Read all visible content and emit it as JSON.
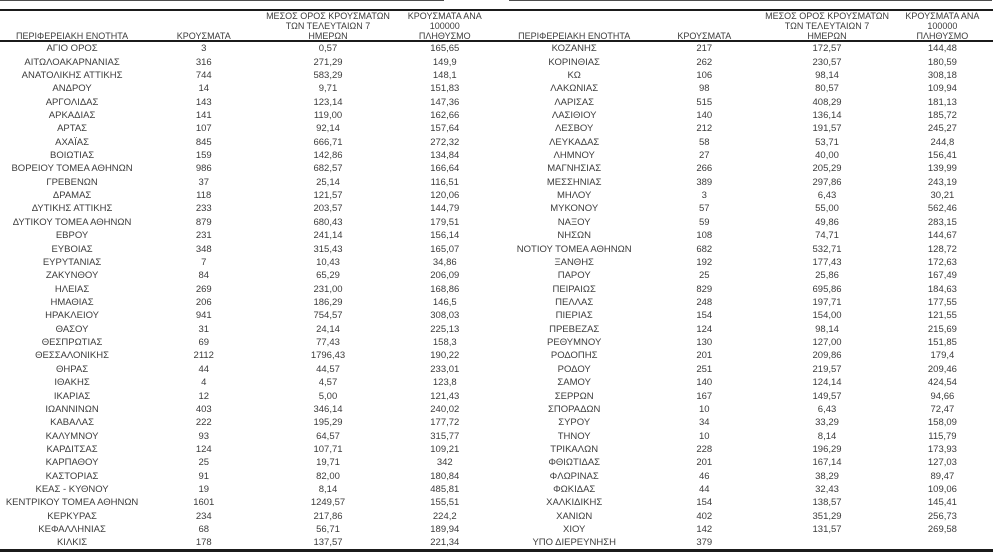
{
  "page": {
    "background": "#ffffff",
    "text_color": "#3c3c3c",
    "line_color": "#1b1b1b"
  },
  "table": {
    "column_headers": {
      "region": "ΠΕΡΙΦΕΡΕΙΑΚΗ ΕΝΟΤΗΤΑ",
      "cases": "ΚΡΟΥΣΜΑΤΑ",
      "avg7_lines": [
        "ΜΕΣΟΣ ΟΡΟΣ ΚΡΟΥΣΜΑΤΩΝ",
        "ΤΩΝ ΤΕΛΕΥΤΑΙΩΝ 7",
        "ΗΜΕΡΩΝ"
      ],
      "per100k_lines": [
        "ΚΡΟΥΣΜΑΤΑ ΑΝΑ 100000",
        "ΠΛΗΘΥΣΜΟ"
      ]
    },
    "left_rows": [
      [
        "ΑΓΙΟ ΟΡΟΣ",
        "3",
        "0,57",
        "165,65"
      ],
      [
        "ΑΙΤΩΛΟΑΚΑΡΝΑΝΙΑΣ",
        "316",
        "271,29",
        "149,9"
      ],
      [
        "ΑΝΑΤΟΛΙΚΗΣ ΑΤΤΙΚΗΣ",
        "744",
        "583,29",
        "148,1"
      ],
      [
        "ΑΝΔΡΟΥ",
        "14",
        "9,71",
        "151,83"
      ],
      [
        "ΑΡΓΟΛΙΔΑΣ",
        "143",
        "123,14",
        "147,36"
      ],
      [
        "ΑΡΚΑΔΙΑΣ",
        "141",
        "119,00",
        "162,66"
      ],
      [
        "ΑΡΤΑΣ",
        "107",
        "92,14",
        "157,64"
      ],
      [
        "ΑΧΑΪΑΣ",
        "845",
        "666,71",
        "272,32"
      ],
      [
        "ΒΟΙΩΤΙΑΣ",
        "159",
        "142,86",
        "134,84"
      ],
      [
        "ΒΟΡΕΙΟΥ ΤΟΜΕΑ ΑΘΗΝΩΝ",
        "986",
        "682,57",
        "166,64"
      ],
      [
        "ΓΡΕΒΕΝΩΝ",
        "37",
        "25,14",
        "116,51"
      ],
      [
        "ΔΡΑΜΑΣ",
        "118",
        "121,57",
        "120,06"
      ],
      [
        "ΔΥΤΙΚΗΣ ΑΤΤΙΚΗΣ",
        "233",
        "203,57",
        "144,79"
      ],
      [
        "ΔΥΤΙΚΟΥ ΤΟΜΕΑ ΑΘΗΝΩΝ",
        "879",
        "680,43",
        "179,51"
      ],
      [
        "ΕΒΡΟΥ",
        "231",
        "241,14",
        "156,14"
      ],
      [
        "ΕΥΒΟΙΑΣ",
        "348",
        "315,43",
        "165,07"
      ],
      [
        "ΕΥΡΥΤΑΝΙΑΣ",
        "7",
        "10,43",
        "34,86"
      ],
      [
        "ΖΑΚΥΝΘΟΥ",
        "84",
        "65,29",
        "206,09"
      ],
      [
        "ΗΛΕΙΑΣ",
        "269",
        "231,00",
        "168,86"
      ],
      [
        "ΗΜΑΘΙΑΣ",
        "206",
        "186,29",
        "146,5"
      ],
      [
        "ΗΡΑΚΛΕΙΟΥ",
        "941",
        "754,57",
        "308,03"
      ],
      [
        "ΘΑΣΟΥ",
        "31",
        "24,14",
        "225,13"
      ],
      [
        "ΘΕΣΠΡΩΤΙΑΣ",
        "69",
        "77,43",
        "158,3"
      ],
      [
        "ΘΕΣΣΑΛΟΝΙΚΗΣ",
        "2112",
        "1796,43",
        "190,22"
      ],
      [
        "ΘΗΡΑΣ",
        "44",
        "44,57",
        "233,01"
      ],
      [
        "ΙΘΑΚΗΣ",
        "4",
        "4,57",
        "123,8"
      ],
      [
        "ΙΚΑΡΙΑΣ",
        "12",
        "5,00",
        "121,43"
      ],
      [
        "ΙΩΑΝΝΙΝΩΝ",
        "403",
        "346,14",
        "240,02"
      ],
      [
        "ΚΑΒΑΛΑΣ",
        "222",
        "195,29",
        "177,72"
      ],
      [
        "ΚΑΛΥΜΝΟΥ",
        "93",
        "64,57",
        "315,77"
      ],
      [
        "ΚΑΡΔΙΤΣΑΣ",
        "124",
        "107,71",
        "109,21"
      ],
      [
        "ΚΑΡΠΑΘΟΥ",
        "25",
        "19,71",
        "342"
      ],
      [
        "ΚΑΣΤΟΡΙΑΣ",
        "91",
        "82,00",
        "180,84"
      ],
      [
        "ΚΕΑΣ - ΚΥΘΝΟΥ",
        "19",
        "8,14",
        "485,81"
      ],
      [
        "ΚΕΝΤΡΙΚΟΥ ΤΟΜΕΑ ΑΘΗΝΩΝ",
        "1601",
        "1249,57",
        "155,51"
      ],
      [
        "ΚΕΡΚΥΡΑΣ",
        "234",
        "217,86",
        "224,2"
      ],
      [
        "ΚΕΦΑΛΛΗΝΙΑΣ",
        "68",
        "56,71",
        "189,94"
      ],
      [
        "ΚΙΛΚΙΣ",
        "178",
        "137,57",
        "221,34"
      ]
    ],
    "right_rows": [
      [
        "ΚΟΖΑΝΗΣ",
        "217",
        "172,57",
        "144,48"
      ],
      [
        "ΚΟΡΙΝΘΙΑΣ",
        "262",
        "230,57",
        "180,59"
      ],
      [
        "ΚΩ",
        "106",
        "98,14",
        "308,18"
      ],
      [
        "ΛΑΚΩΝΙΑΣ",
        "98",
        "80,57",
        "109,94"
      ],
      [
        "ΛΑΡΙΣΑΣ",
        "515",
        "408,29",
        "181,13"
      ],
      [
        "ΛΑΣΙΘΙΟΥ",
        "140",
        "136,14",
        "185,72"
      ],
      [
        "ΛΕΣΒΟΥ",
        "212",
        "191,57",
        "245,27"
      ],
      [
        "ΛΕΥΚΑΔΑΣ",
        "58",
        "53,71",
        "244,8"
      ],
      [
        "ΛΗΜΝΟΥ",
        "27",
        "40,00",
        "156,41"
      ],
      [
        "ΜΑΓΝΗΣΙΑΣ",
        "266",
        "205,29",
        "139,99"
      ],
      [
        "ΜΕΣΣΗΝΙΑΣ",
        "389",
        "297,86",
        "243,19"
      ],
      [
        "ΜΗΛΟΥ",
        "3",
        "6,43",
        "30,21"
      ],
      [
        "ΜΥΚΟΝΟΥ",
        "57",
        "55,00",
        "562,46"
      ],
      [
        "ΝΑΞΟΥ",
        "59",
        "49,86",
        "283,15"
      ],
      [
        "ΝΗΣΩΝ",
        "108",
        "74,71",
        "144,67"
      ],
      [
        "ΝΟΤΙΟΥ ΤΟΜΕΑ ΑΘΗΝΩΝ",
        "682",
        "532,71",
        "128,72"
      ],
      [
        "ΞΑΝΘΗΣ",
        "192",
        "177,43",
        "172,63"
      ],
      [
        "ΠΑΡΟΥ",
        "25",
        "25,86",
        "167,49"
      ],
      [
        "ΠΕΙΡΑΙΩΣ",
        "829",
        "695,86",
        "184,63"
      ],
      [
        "ΠΕΛΛΑΣ",
        "248",
        "197,71",
        "177,55"
      ],
      [
        "ΠΙΕΡΙΑΣ",
        "154",
        "154,00",
        "121,55"
      ],
      [
        "ΠΡΕΒΕΖΑΣ",
        "124",
        "98,14",
        "215,69"
      ],
      [
        "ΡΕΘΥΜΝΟΥ",
        "130",
        "127,00",
        "151,85"
      ],
      [
        "ΡΟΔΟΠΗΣ",
        "201",
        "209,86",
        "179,4"
      ],
      [
        "ΡΟΔΟΥ",
        "251",
        "219,57",
        "209,46"
      ],
      [
        "ΣΑΜΟΥ",
        "140",
        "124,14",
        "424,54"
      ],
      [
        "ΣΕΡΡΩΝ",
        "167",
        "149,57",
        "94,66"
      ],
      [
        "ΣΠΟΡΑΔΩΝ",
        "10",
        "6,43",
        "72,47"
      ],
      [
        "ΣΥΡΟΥ",
        "34",
        "33,29",
        "158,09"
      ],
      [
        "ΤΗΝΟΥ",
        "10",
        "8,14",
        "115,79"
      ],
      [
        "ΤΡΙΚΑΛΩΝ",
        "228",
        "196,29",
        "173,93"
      ],
      [
        "ΦΘΙΩΤΙΔΑΣ",
        "201",
        "167,14",
        "127,03"
      ],
      [
        "ΦΛΩΡΙΝΑΣ",
        "46",
        "38,29",
        "89,47"
      ],
      [
        "ΦΩΚΙΔΑΣ",
        "44",
        "32,43",
        "109,06"
      ],
      [
        "ΧΑΛΚΙΔΙΚΗΣ",
        "154",
        "138,57",
        "145,41"
      ],
      [
        "ΧΑΝΙΩΝ",
        "402",
        "351,29",
        "256,73"
      ],
      [
        "ΧΙΟΥ",
        "142",
        "131,57",
        "269,58"
      ],
      [
        "ΥΠΟ ΔΙΕΡΕΥΝΗΣΗ",
        "379",
        "",
        ""
      ]
    ]
  }
}
